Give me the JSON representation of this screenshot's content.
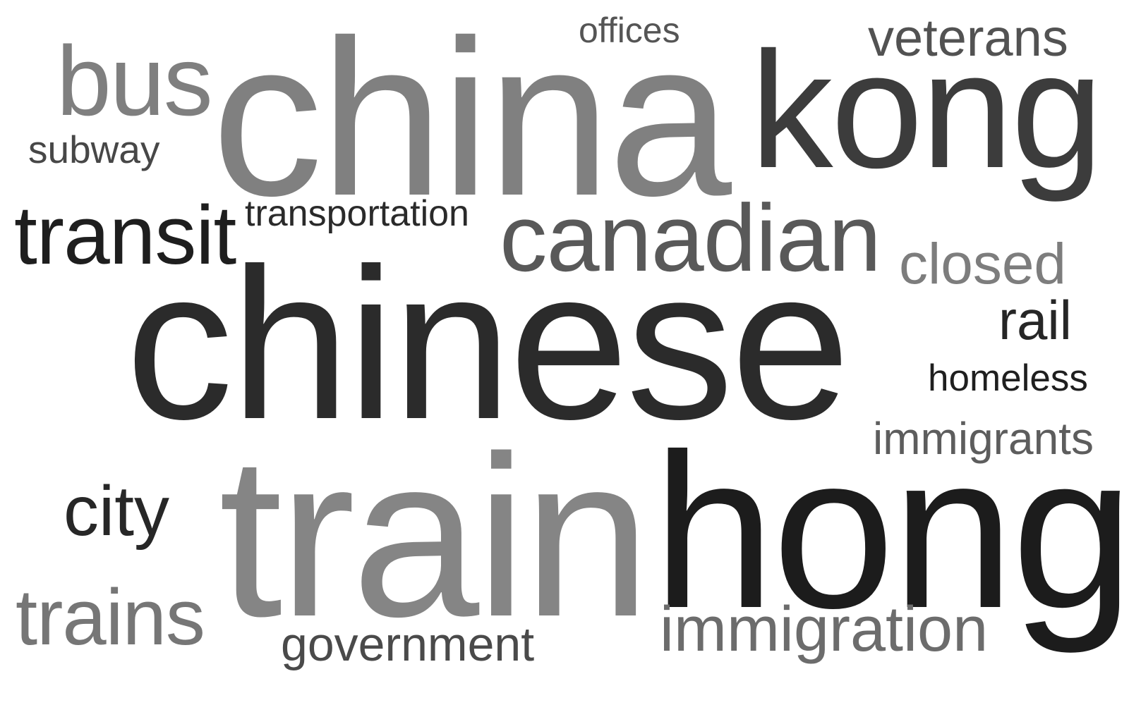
{
  "words": [
    {
      "key": "china",
      "text": "china",
      "color": "#808080"
    },
    {
      "key": "kong",
      "text": "kong",
      "color": "#3c3c3c"
    },
    {
      "key": "bus",
      "text": "bus",
      "color": "#7f7f7f"
    },
    {
      "key": "offices",
      "text": "offices",
      "color": "#555555"
    },
    {
      "key": "veterans",
      "text": "veterans",
      "color": "#525252"
    },
    {
      "key": "subway",
      "text": "subway",
      "color": "#474747"
    },
    {
      "key": "transit",
      "text": "transit",
      "color": "#1e1e1e"
    },
    {
      "key": "transportation",
      "text": "transportation",
      "color": "#2a2a2a"
    },
    {
      "key": "canadian",
      "text": "canadian",
      "color": "#595959"
    },
    {
      "key": "closed",
      "text": "closed",
      "color": "#7d7d7d"
    },
    {
      "key": "chinese",
      "text": "chinese",
      "color": "#2b2b2b"
    },
    {
      "key": "rail",
      "text": "rail",
      "color": "#262626"
    },
    {
      "key": "homeless",
      "text": "homeless",
      "color": "#1f1f1f"
    },
    {
      "key": "immigrants",
      "text": "immigrants",
      "color": "#5d5d5d"
    },
    {
      "key": "city",
      "text": "city",
      "color": "#272727"
    },
    {
      "key": "train",
      "text": "train",
      "color": "#858585"
    },
    {
      "key": "hong",
      "text": "hong",
      "color": "#1c1c1c"
    },
    {
      "key": "trains",
      "text": "trains",
      "color": "#767676"
    },
    {
      "key": "government",
      "text": "government",
      "color": "#4a4a4a"
    },
    {
      "key": "immigration",
      "text": "immigration",
      "color": "#6c6c6c"
    }
  ]
}
